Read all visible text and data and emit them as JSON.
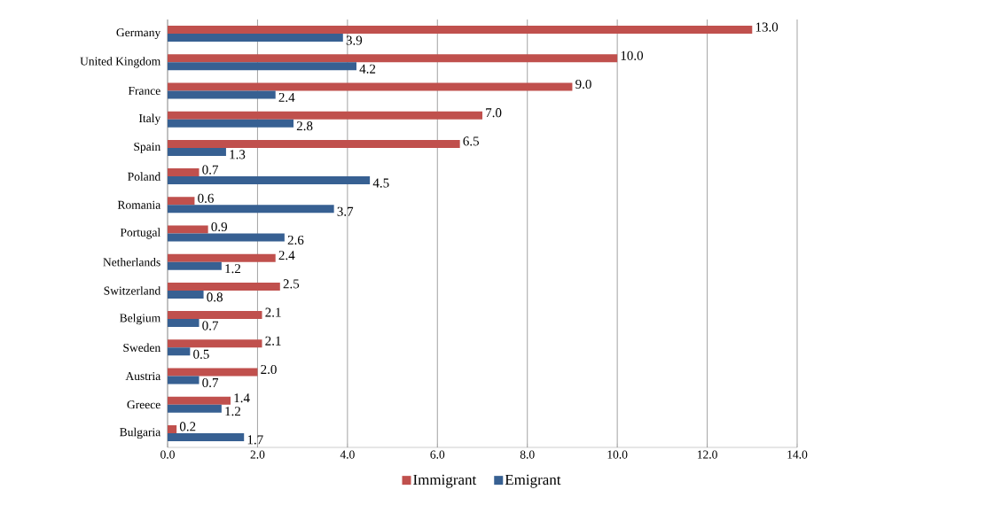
{
  "chart_data": {
    "type": "bar",
    "orientation": "horizontal",
    "categories": [
      "Germany",
      "United Kingdom",
      "France",
      "Italy",
      "Spain",
      "Poland",
      "Romania",
      "Portugal",
      "Netherlands",
      "Switzerland",
      "Belgium",
      "Sweden",
      "Austria",
      "Greece",
      "Bulgaria"
    ],
    "series": [
      {
        "name": "Immigrant",
        "color": "#c0504d",
        "values": [
          13.0,
          10.0,
          9.0,
          7.0,
          6.5,
          0.7,
          0.6,
          0.9,
          2.4,
          2.5,
          2.1,
          2.1,
          2.0,
          1.4,
          0.2
        ],
        "value_labels": [
          "13.0",
          "10.0",
          "9.0",
          "7.0",
          "6.5",
          "0.7",
          "0.6",
          "0.9",
          "2.4",
          "2.5",
          "2.1",
          "2.1",
          "2.0",
          "1.4",
          "0.2"
        ]
      },
      {
        "name": "Emigrant",
        "color": "#376092",
        "values": [
          3.9,
          4.2,
          2.4,
          2.8,
          1.3,
          4.5,
          3.7,
          2.6,
          1.2,
          0.8,
          0.7,
          0.5,
          0.7,
          1.2,
          1.7
        ],
        "value_labels": [
          "3.9",
          "4.2",
          "2.4",
          "2.8",
          "1.3",
          "4.5",
          "3.7",
          "2.6",
          "1.2",
          "0.8",
          "0.7",
          "0.5",
          "0.7",
          "1.2",
          "1.7"
        ]
      }
    ],
    "xlim": [
      0,
      14
    ],
    "xticks": [
      {
        "value": 0,
        "label": "0.0"
      },
      {
        "value": 2,
        "label": "2.0"
      },
      {
        "value": 4,
        "label": "4.0"
      },
      {
        "value": 6,
        "label": "6.0"
      },
      {
        "value": 8,
        "label": "8.0"
      },
      {
        "value": 10,
        "label": "10.0"
      },
      {
        "value": 12,
        "label": "12.0"
      },
      {
        "value": 14,
        "label": "14.0"
      }
    ],
    "grid": "x",
    "legend": "bottom"
  }
}
